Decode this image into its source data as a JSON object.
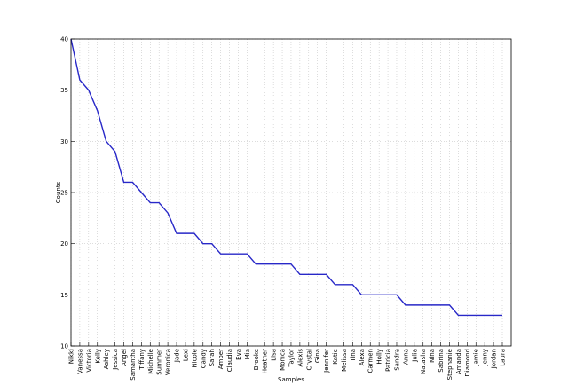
{
  "chart_data": {
    "type": "line",
    "xlabel": "Samples",
    "ylabel": "Counts",
    "categories": [
      "Nikki",
      "Vanessa",
      "Victoria",
      "Kelly",
      "Ashley",
      "Jessica",
      "Angel",
      "Samantha",
      "Tiffany",
      "Michelle",
      "Summer",
      "Veronica",
      "Jade",
      "Lexi",
      "Nicole",
      "Candy",
      "Sarah",
      "Amber",
      "Claudia",
      "Eva",
      "Mia",
      "Brooke",
      "Heather",
      "Lisa",
      "Monica",
      "Taylor",
      "Alexis",
      "Crystal",
      "Gina",
      "Jennifer",
      "Katie",
      "Melissa",
      "Tina",
      "Alexa",
      "Carmen",
      "Holly",
      "Patricia",
      "Sandra",
      "Anna",
      "Julia",
      "Natasha",
      "Nina",
      "Sabrina",
      "Stephanie",
      "Amanda",
      "Diamond",
      "Jamie",
      "Jenny",
      "Jordan",
      "Laura"
    ],
    "values": [
      40,
      36,
      35,
      33,
      30,
      29,
      26,
      26,
      25,
      24,
      24,
      23,
      21,
      21,
      21,
      20,
      20,
      19,
      19,
      19,
      19,
      18,
      18,
      18,
      18,
      18,
      17,
      17,
      17,
      17,
      16,
      16,
      16,
      15,
      15,
      15,
      15,
      15,
      14,
      14,
      14,
      14,
      14,
      14,
      13,
      13,
      13,
      13,
      13,
      13
    ],
    "color": "#2828c8",
    "ylim": [
      10,
      40
    ],
    "yticks": [
      10,
      15,
      20,
      25,
      30,
      35,
      40
    ],
    "grid": true
  }
}
